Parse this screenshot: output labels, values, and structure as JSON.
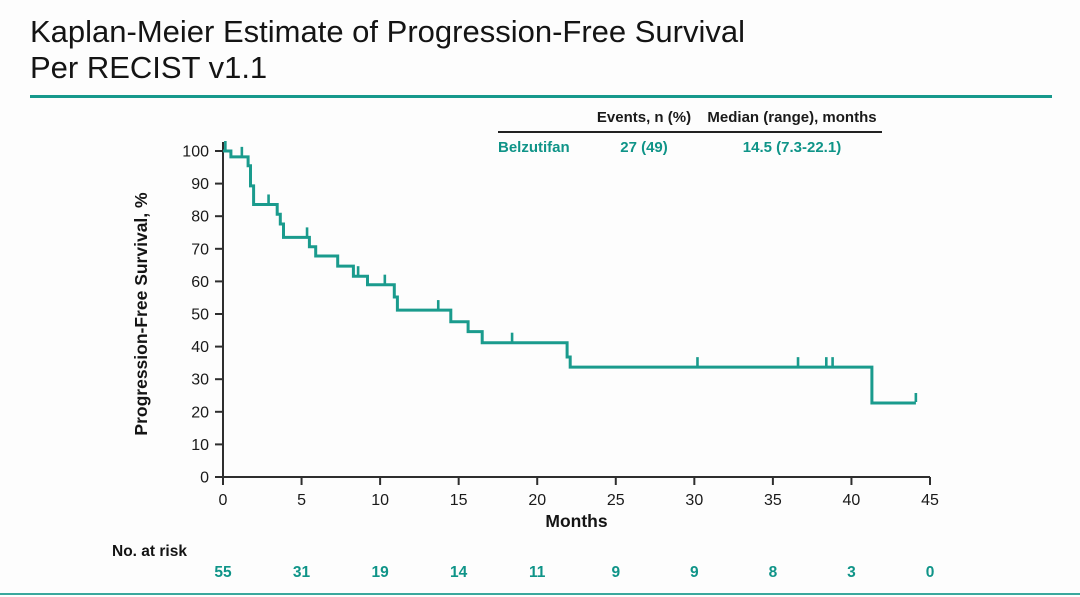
{
  "title": {
    "line1": "Kaplan-Meier Estimate of Progression-Free Survival",
    "line2": "Per RECIST v1.1"
  },
  "colors": {
    "accent": "#17998c",
    "teal_text": "#0f9488",
    "curve": "#1a9b8d",
    "axis": "#2e2e2e",
    "title_text": "#141414"
  },
  "summary_table": {
    "headers": [
      "Events, n (%)",
      "Median (range), months"
    ],
    "rows": [
      {
        "name": "Belzutifan",
        "events": "27 (49)",
        "median": "14.5 (7.3-22.1)"
      }
    ]
  },
  "chart_data": {
    "type": "line",
    "subtype": "kaplan-meier-step",
    "title": "",
    "xlabel": "Months",
    "ylabel": "Progression-Free Survival, %",
    "xlim": [
      0,
      45
    ],
    "xticks": [
      0,
      5,
      10,
      15,
      20,
      25,
      30,
      35,
      40,
      45
    ],
    "ylim": [
      0,
      100
    ],
    "yticks": [
      0,
      10,
      20,
      30,
      40,
      50,
      60,
      70,
      80,
      90,
      100
    ],
    "grid": false,
    "legend_position": "none",
    "series": [
      {
        "name": "Belzutifan",
        "start": [
          0,
          100
        ],
        "steps": [
          [
            0.5,
            98.2
          ],
          [
            1.6,
            95.5
          ],
          [
            1.75,
            89.3
          ],
          [
            1.95,
            83.6
          ],
          [
            3.45,
            80.6
          ],
          [
            3.65,
            77.6
          ],
          [
            3.85,
            73.5
          ],
          [
            5.5,
            70.6
          ],
          [
            5.9,
            67.8
          ],
          [
            7.3,
            64.7
          ],
          [
            8.3,
            61.6
          ],
          [
            9.2,
            59.0
          ],
          [
            10.9,
            55.2
          ],
          [
            11.1,
            51.2
          ],
          [
            14.5,
            47.6
          ],
          [
            15.6,
            44.6
          ],
          [
            16.5,
            41.2
          ],
          [
            21.9,
            36.8
          ],
          [
            22.1,
            33.7
          ],
          [
            41.3,
            22.7
          ]
        ],
        "censor_marks": [
          [
            0.15,
            100
          ],
          [
            1.2,
            98.2
          ],
          [
            2.9,
            83.6
          ],
          [
            5.35,
            73.5
          ],
          [
            8.6,
            61.6
          ],
          [
            10.3,
            59.0
          ],
          [
            13.7,
            51.2
          ],
          [
            18.4,
            41.2
          ],
          [
            30.2,
            33.7
          ],
          [
            36.6,
            33.7
          ],
          [
            38.4,
            33.7
          ],
          [
            38.8,
            33.7
          ],
          [
            44.1,
            22.7
          ]
        ],
        "end_time": 44.1
      }
    ]
  },
  "at_risk": {
    "label": "No. at risk",
    "times": [
      0,
      5,
      10,
      15,
      20,
      25,
      30,
      35,
      40,
      45
    ],
    "values": [
      "55",
      "31",
      "19",
      "14",
      "11",
      "9",
      "9",
      "8",
      "3",
      "0"
    ]
  }
}
